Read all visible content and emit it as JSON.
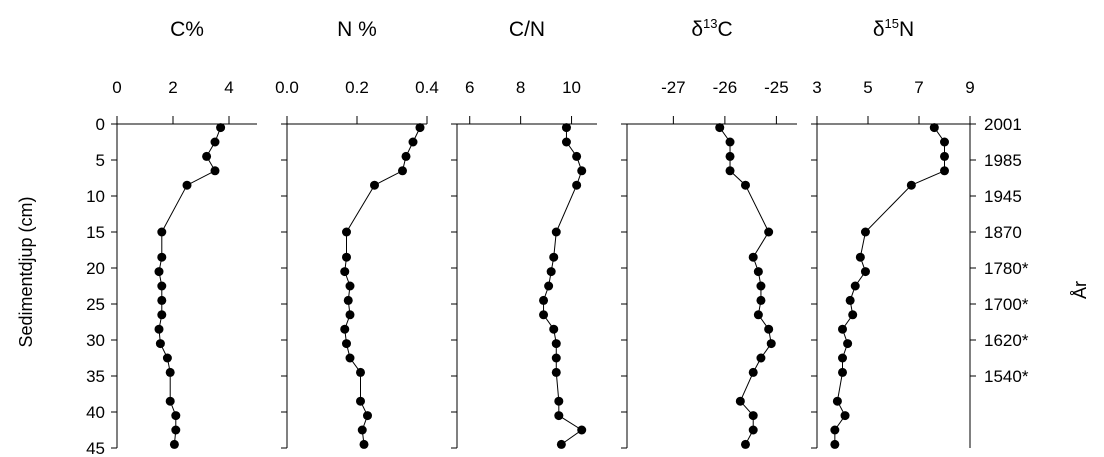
{
  "chart_data": {
    "type": "scatter",
    "y_axis": {
      "label": "Sedimentdjup (cm)",
      "range": [
        0,
        45
      ],
      "ticks": [
        "0",
        "5",
        "10",
        "15",
        "20",
        "25",
        "30",
        "35",
        "40",
        "45"
      ],
      "inverted": true
    },
    "right_axis": {
      "label": "År",
      "ticks": [
        {
          "depth": 0,
          "label": "2001"
        },
        {
          "depth": 5,
          "label": "1985"
        },
        {
          "depth": 10,
          "label": "1945"
        },
        {
          "depth": 15,
          "label": "1870"
        },
        {
          "depth": 20,
          "label": "1780*"
        },
        {
          "depth": 25,
          "label": "1700*"
        },
        {
          "depth": 30,
          "label": "1620*"
        },
        {
          "depth": 35,
          "label": "1540*"
        }
      ]
    },
    "depths": [
      0.5,
      2.5,
      4.5,
      6.5,
      8.5,
      15,
      18.5,
      20.5,
      22.5,
      24.5,
      26.5,
      28.5,
      30.5,
      32.5,
      34.5,
      38.5,
      40.5,
      42.5,
      44.5
    ],
    "panels": [
      {
        "title": "C%",
        "title_main": "C%",
        "title_sup": "",
        "title_after": "",
        "xlim": [
          0,
          5
        ],
        "ticks": [
          0,
          2,
          4
        ],
        "tick_labels": [
          "0",
          "2",
          "4"
        ],
        "values": [
          3.7,
          3.5,
          3.2,
          3.5,
          2.5,
          1.6,
          1.6,
          1.5,
          1.6,
          1.6,
          1.6,
          1.5,
          1.55,
          1.8,
          1.9,
          1.9,
          2.1,
          2.1,
          2.05
        ]
      },
      {
        "title": "N %",
        "title_main": "N %",
        "title_sup": "",
        "title_after": "",
        "xlim": [
          0,
          0.4
        ],
        "ticks": [
          0,
          0.2,
          0.4
        ],
        "tick_labels": [
          "0.0",
          "0.2",
          "0.4"
        ],
        "values": [
          0.38,
          0.36,
          0.34,
          0.33,
          0.25,
          0.17,
          0.17,
          0.165,
          0.18,
          0.175,
          0.18,
          0.165,
          0.17,
          0.18,
          0.21,
          0.21,
          0.23,
          0.215,
          0.22
        ]
      },
      {
        "title": "C/N",
        "title_main": "C/N",
        "title_sup": "",
        "title_after": "",
        "xlim": [
          5.5,
          11
        ],
        "ticks": [
          6,
          8,
          10
        ],
        "tick_labels": [
          "6",
          "8",
          "10"
        ],
        "values": [
          9.8,
          9.8,
          10.2,
          10.4,
          10.2,
          9.4,
          9.3,
          9.2,
          9.1,
          8.9,
          8.9,
          9.3,
          9.4,
          9.4,
          9.4,
          9.5,
          9.5,
          10.4,
          9.6
        ]
      },
      {
        "title": "δ13C",
        "title_main": "δ",
        "title_sup": "13",
        "title_after": "C",
        "xlim": [
          -27.9,
          -24.6
        ],
        "ticks": [
          -27,
          -26,
          -25
        ],
        "tick_labels": [
          "-27",
          "-26",
          "-25"
        ],
        "values": [
          -26.1,
          -25.9,
          -25.9,
          -25.9,
          -25.6,
          -25.15,
          -25.45,
          -25.35,
          -25.3,
          -25.3,
          -25.35,
          -25.15,
          -25.1,
          -25.3,
          -25.45,
          -25.7,
          -25.45,
          -25.45,
          -25.6
        ]
      },
      {
        "title": "δ15N",
        "title_main": "δ",
        "title_sup": "15",
        "title_after": "N",
        "xlim": [
          3,
          9
        ],
        "ticks": [
          3,
          5,
          7,
          9
        ],
        "tick_labels": [
          "3",
          "5",
          "7",
          "9"
        ],
        "values": [
          7.6,
          8.0,
          8.0,
          8.0,
          6.7,
          4.9,
          4.7,
          4.9,
          4.5,
          4.3,
          4.4,
          4.0,
          4.2,
          4.0,
          4.0,
          3.8,
          4.1,
          3.7,
          3.7
        ]
      }
    ]
  }
}
